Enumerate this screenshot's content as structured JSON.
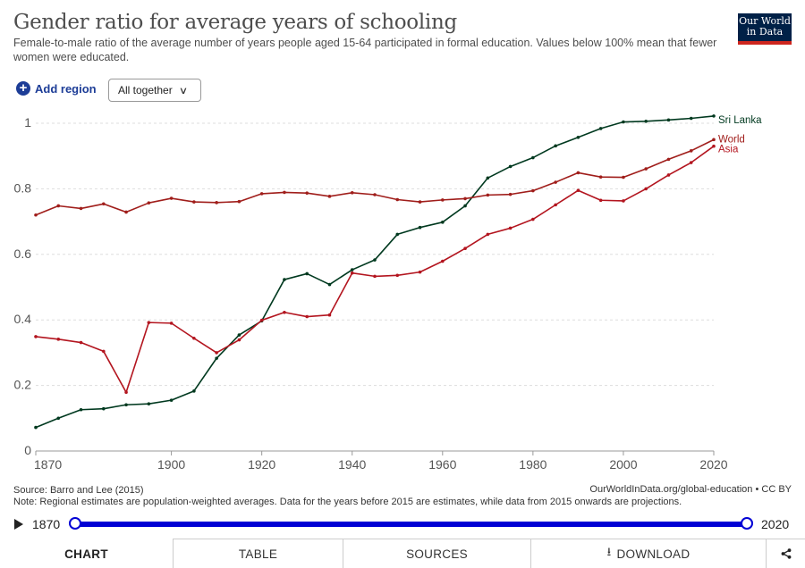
{
  "header": {
    "title": "Gender ratio for average years of schooling",
    "subtitle": "Female-to-male ratio of the average number of years people aged 15-64 participated in formal education. Values below 100% mean that fewer women were educated.",
    "logo_line1": "Our World",
    "logo_line2": "in Data"
  },
  "controls": {
    "add_region_label": "Add region",
    "select_value": "All together"
  },
  "colors": {
    "sri_lanka": "#00391f",
    "world": "#a01e1b",
    "asia": "#b3151f",
    "accent": "#1d3d97",
    "timeline": "#0000d4"
  },
  "chart_data": {
    "type": "line",
    "title": "Gender ratio for average years of schooling",
    "xlim": [
      1870,
      2020
    ],
    "ylim": [
      0,
      1
    ],
    "x_ticks": [
      "1870",
      "1900",
      "1920",
      "1940",
      "1960",
      "1980",
      "2000",
      "2020"
    ],
    "y_ticks": [
      "0",
      "0.2",
      "0.4",
      "0.6",
      "0.8",
      "1"
    ],
    "grid": true,
    "legend": "labels at line ends (right)",
    "x": [
      1870,
      1875,
      1880,
      1885,
      1890,
      1895,
      1900,
      1905,
      1910,
      1915,
      1920,
      1925,
      1930,
      1935,
      1940,
      1945,
      1950,
      1955,
      1960,
      1965,
      1970,
      1975,
      1980,
      1985,
      1990,
      1995,
      2000,
      2005,
      2010,
      2015,
      2020
    ],
    "series": [
      {
        "name": "Sri Lanka",
        "color_key": "sri_lanka",
        "values": [
          0.072,
          0.1,
          0.126,
          0.129,
          0.141,
          0.144,
          0.155,
          0.183,
          0.283,
          0.354,
          0.397,
          0.523,
          0.541,
          0.508,
          0.553,
          0.583,
          0.661,
          0.682,
          0.698,
          0.748,
          0.833,
          0.868,
          0.895,
          0.931,
          0.957,
          0.984,
          1.004,
          1.006,
          1.01,
          1.015,
          1.022
        ]
      },
      {
        "name": "World",
        "color_key": "world",
        "values": [
          0.72,
          0.748,
          0.74,
          0.754,
          0.729,
          0.757,
          0.771,
          0.76,
          0.758,
          0.761,
          0.785,
          0.789,
          0.787,
          0.777,
          0.788,
          0.782,
          0.767,
          0.76,
          0.766,
          0.77,
          0.781,
          0.783,
          0.794,
          0.82,
          0.849,
          0.836,
          0.835,
          0.861,
          0.89,
          0.916,
          0.95
        ]
      },
      {
        "name": "Asia",
        "color_key": "asia",
        "values": [
          0.349,
          0.341,
          0.331,
          0.304,
          0.179,
          0.392,
          0.39,
          0.344,
          0.3,
          0.339,
          0.399,
          0.423,
          0.41,
          0.415,
          0.543,
          0.533,
          0.536,
          0.546,
          0.579,
          0.618,
          0.661,
          0.68,
          0.707,
          0.751,
          0.795,
          0.765,
          0.763,
          0.8,
          0.842,
          0.88,
          0.93
        ]
      }
    ]
  },
  "footer": {
    "source": "Source: Barro and Lee (2015)",
    "note": "Note: Regional estimates are population-weighted averages. Data for the years before 2015 are estimates, while data from 2015 onwards are projections.",
    "link": "OurWorldInData.org/global-education • CC BY"
  },
  "timeline": {
    "start": "1870",
    "end": "2020",
    "start_fraction": 0,
    "end_fraction": 1
  },
  "tabs": {
    "chart": "CHART",
    "table": "TABLE",
    "sources": "SOURCES",
    "download": "DOWNLOAD"
  }
}
